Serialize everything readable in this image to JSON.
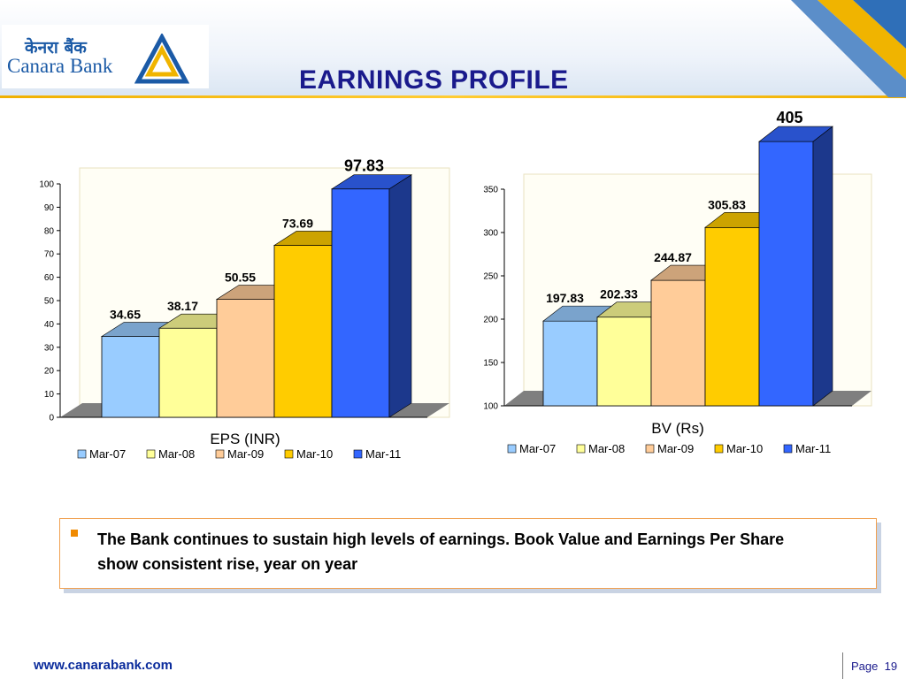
{
  "header": {
    "title": "EARNINGS PROFILE",
    "logo_hindi": "केनरा बैंक",
    "logo_english": "Canara Bank"
  },
  "note": {
    "text": "The Bank continues to sustain high levels of earnings. Book Value and Earnings Per Share show consistent rise, year on year"
  },
  "footer": {
    "url": "www.canarabank.com",
    "page_label": "Page",
    "page_number": "19"
  },
  "colors": {
    "brand_blue": "#1b5aa6",
    "title_navy": "#1a1a8c",
    "accent_orange": "#f08a00"
  },
  "chart_data": [
    {
      "type": "bar",
      "title": "EPS (INR)",
      "categories": [
        "Mar-07",
        "Mar-08",
        "Mar-09",
        "Mar-10",
        "Mar-11"
      ],
      "values": [
        34.65,
        38.17,
        50.55,
        73.69,
        97.83
      ],
      "data_labels": [
        "34.65",
        "38.17",
        "50.55",
        "73.69",
        "97.83"
      ],
      "colors": [
        "#99ccff",
        "#ffff99",
        "#ffcc99",
        "#ffcc00",
        "#3366ff"
      ],
      "ylim": [
        0,
        100
      ],
      "yticks": [
        0,
        10,
        20,
        30,
        40,
        50,
        60,
        70,
        80,
        90,
        100
      ],
      "legend": "bottom",
      "grid": false,
      "style": "3d"
    },
    {
      "type": "bar",
      "title": "BV (Rs)",
      "categories": [
        "Mar-07",
        "Mar-08",
        "Mar-09",
        "Mar-10",
        "Mar-11"
      ],
      "values": [
        197.83,
        202.33,
        244.87,
        305.83,
        405
      ],
      "data_labels": [
        "197.83",
        "202.33",
        "244.87",
        "305.83",
        "405"
      ],
      "colors": [
        "#99ccff",
        "#ffff99",
        "#ffcc99",
        "#ffcc00",
        "#3366ff"
      ],
      "ylim": [
        100,
        350
      ],
      "yticks": [
        100,
        150,
        200,
        250,
        300,
        350
      ],
      "legend": "bottom",
      "grid": false,
      "style": "3d"
    }
  ]
}
